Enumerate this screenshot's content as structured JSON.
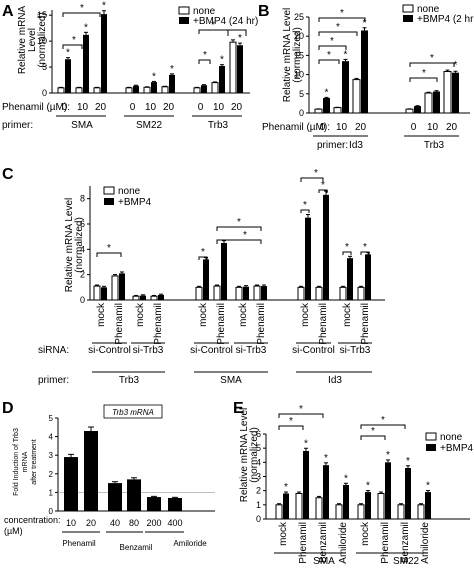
{
  "chart_data": [
    {
      "type": "bar",
      "panel": "A",
      "ylabel": "Relative mRNA Level (normalized)",
      "legend": [
        "none",
        "+BMP4 (24 hr)"
      ],
      "row_labels": [
        "Phenamil (µM):",
        "primer:"
      ],
      "series": [
        {
          "name": "none"
        },
        {
          "name": "+BMP4 (24 hr)"
        }
      ],
      "categories": [
        "0",
        "10",
        "20",
        "0",
        "10",
        "20",
        "0",
        "10",
        "20"
      ],
      "groups": [
        "SMA",
        "SM22",
        "Trb3"
      ],
      "values_none": [
        1,
        1,
        1,
        1,
        1.1,
        1.2,
        1,
        2,
        9.8
      ],
      "values_bmp4": [
        6.5,
        11.2,
        15.2,
        1.4,
        2.1,
        3.5,
        1.5,
        5.2,
        9.2
      ],
      "ylim": [
        0,
        16
      ],
      "yticks": [
        0,
        5,
        10,
        15
      ]
    },
    {
      "type": "bar",
      "panel": "B",
      "ylabel": "Relative mRNA Level (normalized)",
      "legend": [
        "none",
        "+BMP4 (2 hr)"
      ],
      "row_labels": [
        "Phenamil (µM):",
        "primer:"
      ],
      "series": [
        {
          "name": "none"
        },
        {
          "name": "+BMP4 (2 hr)"
        }
      ],
      "categories": [
        "0",
        "10",
        "20",
        "0",
        "10",
        "20"
      ],
      "groups": [
        "Id3",
        "Trb3"
      ],
      "values_none": [
        1,
        1.4,
        8.7,
        1,
        5.2,
        10.8
      ],
      "values_bmp4": [
        3.9,
        13.5,
        21.5,
        1.8,
        5.6,
        10.5
      ],
      "ylim": [
        0,
        25
      ],
      "yticks": [
        0,
        5,
        10,
        15,
        20,
        25
      ]
    },
    {
      "type": "bar",
      "panel": "C",
      "ylabel": "Relative mRNA Level (normalized)",
      "legend": [
        "none",
        "+BMP4"
      ],
      "row_labels": [
        "siRNA:",
        "primer:"
      ],
      "series": [
        {
          "name": "none"
        },
        {
          "name": "+BMP4"
        }
      ],
      "categories": [
        "mock",
        "Phenamil",
        "mock",
        "Phenamil",
        "mock",
        "Phenamil",
        "mock",
        "Phenamil",
        "mock",
        "Phenamil",
        "mock",
        "Phenamil"
      ],
      "sirna": [
        "si-Control",
        "si-Trb3",
        "si-Control",
        "si-Trb3",
        "si-Control",
        "si-Trb3"
      ],
      "groups": [
        "Trb3",
        "SMA",
        "Id3"
      ],
      "values_none": [
        1.1,
        1.9,
        0.3,
        0.3,
        1,
        1.1,
        1,
        1.1,
        1,
        1,
        1,
        1
      ],
      "values_bmp4": [
        1,
        2.1,
        0.35,
        0.4,
        3.2,
        4.5,
        1.05,
        1.1,
        6.5,
        8.3,
        3.3,
        3.6
      ],
      "ylim": [
        0,
        9
      ],
      "yticks": [
        0,
        2,
        4,
        6,
        8
      ]
    },
    {
      "type": "bar",
      "panel": "D",
      "ylabel": "Fold Induction of Trb3 mRNA after treatment",
      "inset_label": "Trb3 mRNA",
      "row_labels": [
        "concentration: (µM)"
      ],
      "categories": [
        "10",
        "20",
        "40",
        "80",
        "200",
        "400"
      ],
      "groups": [
        "Phenamil",
        "Benzamil",
        "Amiloride"
      ],
      "values": [
        2.9,
        4.3,
        1.5,
        1.7,
        0.75,
        0.7
      ],
      "ylim": [
        0,
        5
      ],
      "yticks": [
        0,
        1,
        2,
        3,
        4,
        5
      ]
    },
    {
      "type": "bar",
      "panel": "E",
      "ylabel": "Relative mRNA Level (normalized)",
      "legend": [
        "none",
        "+BMP4"
      ],
      "series": [
        {
          "name": "none"
        },
        {
          "name": "+BMP4"
        }
      ],
      "categories": [
        "mock",
        "Phenamil",
        "Benzamil",
        "Amiloride",
        "mock",
        "Phenamil",
        "Benzamil",
        "Amiloride"
      ],
      "groups": [
        "SMA",
        "SM22"
      ],
      "values_none": [
        1,
        1.8,
        1.5,
        1,
        1,
        1.8,
        1,
        1
      ],
      "values_bmp4": [
        1.8,
        4.8,
        3.8,
        2.4,
        1.9,
        4,
        3.6,
        1.9
      ],
      "ylim": [
        0,
        6
      ],
      "yticks": [
        0,
        1,
        2,
        3,
        4,
        5,
        6
      ]
    }
  ],
  "panels": {
    "A": {
      "letter": "A",
      "ylabel_l1": "Relative mRNA",
      "ylabel_l2": "Level",
      "ylabel_l3": "(normalized)",
      "legend_none": "none",
      "legend_bmp": "+BMP4 (24 hr)",
      "row1": "Phenamil (µM):",
      "row2": "primer:",
      "g1": "SMA",
      "g2": "SM22",
      "g3": "Trb3"
    },
    "B": {
      "letter": "B",
      "ylabel_l1": "Relative mRNA Level",
      "ylabel_l2": "(normalized)",
      "legend_none": "none",
      "legend_bmp": "+BMP4 (2 hr",
      "row1": "Phenamil (µM):",
      "row2": "primer:",
      "g1": "Id3",
      "g2": "Trb3"
    },
    "C": {
      "letter": "C",
      "ylabel_l1": "Relative mRNA Level",
      "ylabel_l2": "(normalized)",
      "legend_none": "none",
      "legend_bmp": "+BMP4",
      "row1": "siRNA:",
      "row2": "primer:",
      "g1": "Trb3",
      "g2": "SMA",
      "g3": "Id3"
    },
    "D": {
      "letter": "D",
      "ylabel_l1": "Fold Induction of Trb3",
      "ylabel_l2": "mRNA",
      "ylabel_l3": "after treatment",
      "inset": "Trb3 mRNA",
      "row1": "concentration:",
      "row1b": "(µM)",
      "g1": "Phenamil",
      "g2": "Benzamil",
      "g3": "Amiloride"
    },
    "E": {
      "letter": "E",
      "ylabel_l1": "Relative mRNA Level",
      "ylabel_l2": "(normalized)",
      "legend_none": "none",
      "legend_bmp": "+BMP4",
      "g1": "SMA",
      "g2": "SM22"
    }
  },
  "sig_mark": "*"
}
